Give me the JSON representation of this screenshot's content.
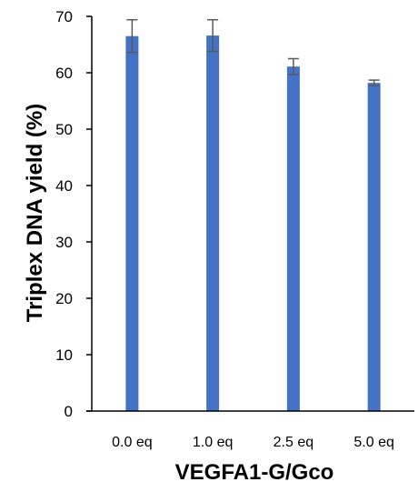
{
  "chart_data": {
    "type": "bar",
    "categories": [
      "0.0 eq",
      "1.0 eq",
      "2.5 eq",
      "5.0 eq"
    ],
    "values": [
      66.5,
      66.6,
      61.1,
      58.2
    ],
    "errors": [
      2.9,
      2.8,
      1.4,
      0.5
    ],
    "xlabel": "VEGFA1-G/Gco",
    "ylabel": "Triplex DNA yield (%)",
    "ylim": [
      0,
      70
    ],
    "yticks": [
      0,
      10,
      20,
      30,
      40,
      50,
      60,
      70
    ],
    "grid": false,
    "legend": "none",
    "bar_color": "#4472C4",
    "error_bar_color": "#595959",
    "axis_color": "#000000"
  }
}
